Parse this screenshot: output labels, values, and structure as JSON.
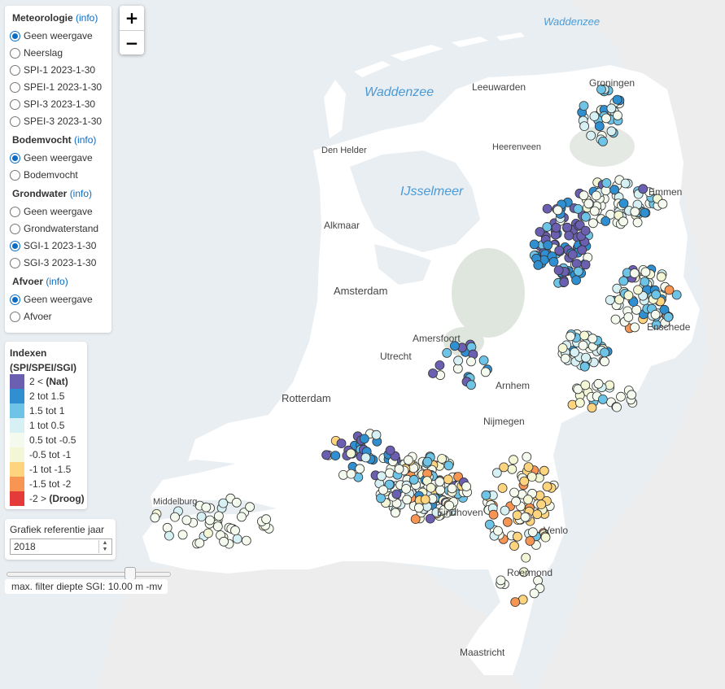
{
  "map": {
    "colors": {
      "sea": "#e9eef2",
      "water_text": "#4a9bd8",
      "land": "#ffffff",
      "abroad": "#ededed",
      "forest": "#dfe6de",
      "road": "#d5d5d5"
    },
    "water_labels": [
      "Waddenzee",
      "Waddenzee",
      "IJsselmeer"
    ],
    "city_labels": [
      "Leeuwarden",
      "Groningen",
      "Den Helder",
      "Heerenveen",
      "Emmen",
      "Alkmaar",
      "Amsterdam",
      "Amersfoort",
      "Utrecht",
      "Enschede",
      "Rotterdam",
      "Arnhem",
      "Nijmegen",
      "Middelburg",
      "Eindhoven",
      "Venlo",
      "Roermond",
      "Maastricht"
    ]
  },
  "zoom": {
    "in_label": "+",
    "out_label": "−"
  },
  "layers": {
    "meteorologie": {
      "title": "Meteorologie",
      "info": "(info)",
      "options": [
        "Geen weergave",
        "Neerslag",
        "SPI-1 2023-1-30",
        "SPEI-1 2023-1-30",
        "SPI-3 2023-1-30",
        "SPEI-3 2023-1-30"
      ],
      "selected": 0
    },
    "bodemvocht": {
      "title": "Bodemvocht",
      "info": "(info)",
      "options": [
        "Geen weergave",
        "Bodemvocht"
      ],
      "selected": 0
    },
    "grondwater": {
      "title": "Grondwater",
      "info": "(info)",
      "options": [
        "Geen weergave",
        "Grondwaterstand",
        "SGI-1 2023-1-30",
        "SGI-3 2023-1-30"
      ],
      "selected": 2
    },
    "afvoer": {
      "title": "Afvoer",
      "info": "(info)",
      "options": [
        "Geen weergave",
        "Afvoer"
      ],
      "selected": 0
    }
  },
  "legend": {
    "title_line1": "Indexen",
    "title_line2": "(SPI/SPEI/SGI)",
    "items": [
      {
        "prefix": "2 <",
        "strong": "(Nat)",
        "color": "#6a5fb0"
      },
      {
        "prefix": "2 tot 1.5",
        "strong": "",
        "color": "#2f8fd0"
      },
      {
        "prefix": "1.5 tot 1",
        "strong": "",
        "color": "#6ec4e6"
      },
      {
        "prefix": "1 tot 0.5",
        "strong": "",
        "color": "#d7f0f3"
      },
      {
        "prefix": "0.5 tot -0.5",
        "strong": "",
        "color": "#f4fbee"
      },
      {
        "prefix": "-0.5 tot -1",
        "strong": "",
        "color": "#f3f7d6"
      },
      {
        "prefix": "-1 tot -1.5",
        "strong": "",
        "color": "#fed47f"
      },
      {
        "prefix": "-1.5 tot -2",
        "strong": "",
        "color": "#f99553"
      },
      {
        "prefix": "-2 >",
        "strong": "(Droog)",
        "color": "#e43a3a"
      }
    ]
  },
  "year": {
    "label": "Grafiek referentie jaar",
    "value": "2018"
  },
  "depth_filter": {
    "label": "max. filter diepte SGI: 10.00 m -mv",
    "value_m": 10.0
  }
}
